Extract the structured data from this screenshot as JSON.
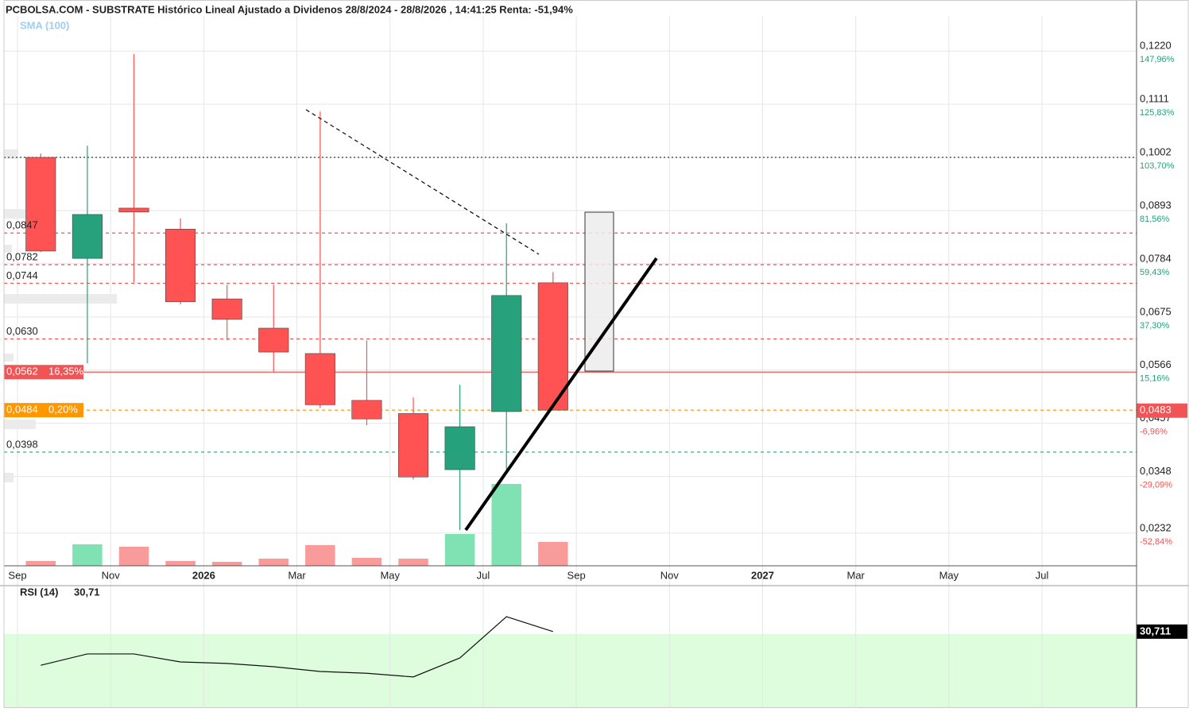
{
  "chart_data": [
    {
      "type": "candlestick",
      "title": "PCBOLSA.COM - SUBSTRATE Histórico Lineal Ajustado a Dividenos 28/8/2024 - 28/8/2026 , 14:41:25 Renta: -51,94%",
      "indicator_label": "SMA (100)",
      "x": [
        0.5,
        1.5,
        2.5,
        3.5,
        4.5,
        5.5,
        6.5,
        7.5,
        8.5,
        9.5,
        10.5,
        11.5
      ],
      "open": [
        0.1002,
        0.0795,
        0.0898,
        0.0855,
        0.0712,
        0.0652,
        0.06,
        0.0504,
        0.0477,
        0.0362,
        0.0481,
        0.0745
      ],
      "high": [
        0.101,
        0.1026,
        0.1214,
        0.0877,
        0.0741,
        0.0741,
        0.1096,
        0.0627,
        0.051,
        0.0536,
        0.0867,
        0.0767
      ],
      "low": [
        0.0808,
        0.058,
        0.0746,
        0.0701,
        0.0627,
        0.0562,
        0.0489,
        0.0453,
        0.0342,
        0.0238,
        0.0355,
        0.0484
      ],
      "close": [
        0.081,
        0.0885,
        0.089,
        0.0706,
        0.067,
        0.0603,
        0.0495,
        0.0466,
        0.0347,
        0.045,
        0.0719,
        0.0484
      ],
      "up_color": "#26a17b",
      "down_color": "#ff5252",
      "volume": {
        "values": [
          6,
          27,
          24,
          6,
          5,
          9,
          26,
          10,
          9,
          40,
          103,
          30
        ],
        "ylim": [
          0,
          250
        ],
        "up_color": "#80e2b2",
        "down_color": "#f99b9b"
      },
      "xlim": [
        -0.29,
        24.03
      ],
      "xticks": [
        {
          "value": 0,
          "label": "Sep"
        },
        {
          "value": 2,
          "label": "Nov"
        },
        {
          "value": 4,
          "label": "2026"
        },
        {
          "value": 6,
          "label": "Mar"
        },
        {
          "value": 8,
          "label": "May"
        },
        {
          "value": 10,
          "label": "Jul"
        },
        {
          "value": 12,
          "label": "Sep"
        },
        {
          "value": 14,
          "label": "Nov"
        },
        {
          "value": 16,
          "label": "2027"
        },
        {
          "value": 18,
          "label": "Mar"
        },
        {
          "value": 20,
          "label": "May"
        },
        {
          "value": 22,
          "label": "Jul"
        }
      ],
      "ylim": [
        0.0165,
        0.1292
      ],
      "yticks": [
        {
          "value": 0.122,
          "label": "0,1220"
        },
        {
          "value": 0.1111,
          "label": "0,1111"
        },
        {
          "value": 0.1002,
          "label": "0,1002"
        },
        {
          "value": 0.0893,
          "label": "0,0893"
        },
        {
          "value": 0.0784,
          "label": "0,0784"
        },
        {
          "value": 0.0675,
          "label": "0,0675"
        },
        {
          "value": 0.0566,
          "label": "0,0566"
        },
        {
          "value": 0.0457,
          "label": "0,0457"
        },
        {
          "value": 0.0348,
          "label": "0,0348"
        },
        {
          "value": 0.0232,
          "label": "0,0232"
        }
      ],
      "ytick_pct_labels": [
        "147,96%",
        "125,83%",
        "103,70%",
        "81,56%",
        "59,43%",
        "37,30%",
        "15,16%",
        "-6,96%",
        "-29,09%",
        "-52,84%"
      ],
      "grid": true,
      "levels": [
        {
          "value": 0.1002,
          "color": "#222222",
          "style": "dotted"
        },
        {
          "value": 0.0847,
          "label": "0,0847",
          "color": "#f05454",
          "style": "dashed"
        },
        {
          "value": 0.0782,
          "label": "0,0782",
          "color": "#f05454",
          "style": "dashed"
        },
        {
          "value": 0.0744,
          "label": "0,0744",
          "color": "#f05454",
          "style": "dashed"
        },
        {
          "value": 0.063,
          "label": "0,0630",
          "color": "#f05454",
          "style": "dashed"
        },
        {
          "value": 0.0562,
          "label": "0,0562",
          "pct": "16,35%",
          "color": "#f05454",
          "style": "solid"
        },
        {
          "value": 0.0484,
          "label": "0,0484",
          "pct": "0,20%",
          "color": "#ff9800",
          "style": "dashed"
        },
        {
          "value": 0.0398,
          "label": "0,0398",
          "color": "#26a17b",
          "style": "dashed"
        }
      ],
      "last": {
        "value": 0.0483,
        "label": "0,0483",
        "color": "#f05454"
      }
    },
    {
      "type": "line",
      "title": "RSI (14)",
      "current_label": "30,71",
      "axis_label": "30,711",
      "x": [
        0.5,
        1.5,
        2.5,
        3.5,
        4.5,
        5.5,
        6.5,
        7.5,
        8.5,
        9.5,
        10.5,
        11.5
      ],
      "values": [
        21.5,
        24.6,
        24.6,
        22.4,
        22.0,
        21.1,
        19.8,
        19.3,
        18.3,
        23.5,
        34.8,
        30.711
      ],
      "color": "#111111",
      "ylim": [
        10,
        43.3
      ],
      "oversold": 30,
      "oversold_color": "#ddfddd"
    }
  ]
}
